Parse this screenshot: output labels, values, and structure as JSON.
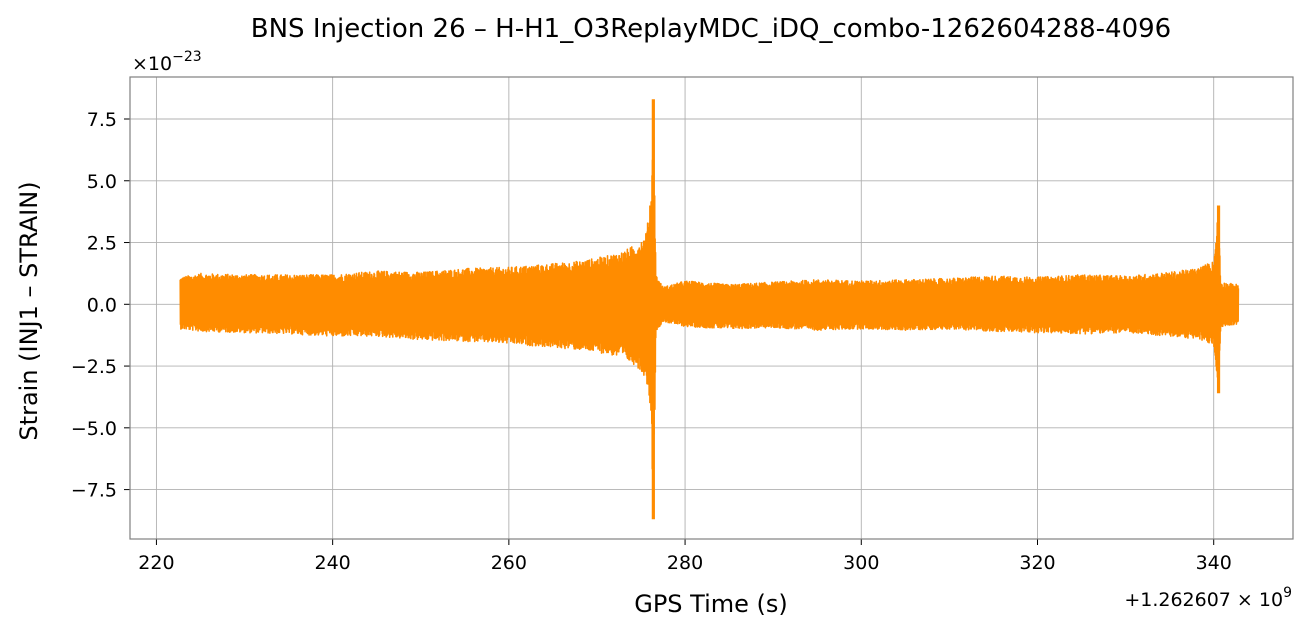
{
  "chart_data": {
    "type": "line",
    "title": "BNS Injection 26 – H-H1_O3ReplayMDC_iDQ_combo-1262604288-4096",
    "xlabel": "GPS Time (s)",
    "ylabel": "Strain (INJ1 – STRAIN)",
    "x_offset_label": "+1.262607 × 10^9",
    "y_multiplier_label": "×10^−23",
    "xlim": [
      217,
      349
    ],
    "ylim": [
      -9.5,
      9.2
    ],
    "xticks": [
      220,
      240,
      260,
      280,
      300,
      320,
      340
    ],
    "xtick_labels": [
      "220",
      "240",
      "260",
      "280",
      "300",
      "320",
      "340"
    ],
    "yticks": [
      -7.5,
      -5.0,
      -2.5,
      0.0,
      2.5,
      5.0,
      7.5
    ],
    "ytick_labels": [
      "−7.5",
      "−5.0",
      "−2.5",
      "0.0",
      "2.5",
      "5.0",
      "7.5"
    ],
    "grid": true,
    "legend": null,
    "series": [
      {
        "name": "",
        "color": "#ff8c00",
        "x_range": [
          222.7,
          342.8
        ],
        "envelope_upper": [
          [
            222.7,
            1.1
          ],
          [
            225,
            1.25
          ],
          [
            230,
            1.2
          ],
          [
            235,
            1.2
          ],
          [
            240,
            1.2
          ],
          [
            245,
            1.35
          ],
          [
            250,
            1.3
          ],
          [
            255,
            1.45
          ],
          [
            260,
            1.5
          ],
          [
            265,
            1.65
          ],
          [
            268,
            1.75
          ],
          [
            271,
            1.95
          ],
          [
            273,
            2.15
          ],
          [
            274.5,
            2.45
          ],
          [
            275.5,
            2.8
          ],
          [
            276.1,
            4.0
          ],
          [
            276.4,
            8.3
          ],
          [
            276.7,
            1.2
          ],
          [
            277.5,
            0.7
          ],
          [
            280,
            0.95
          ],
          [
            285,
            0.8
          ],
          [
            290,
            0.9
          ],
          [
            295,
            1.0
          ],
          [
            300,
            0.95
          ],
          [
            305,
            1.0
          ],
          [
            310,
            1.05
          ],
          [
            315,
            1.15
          ],
          [
            320,
            1.1
          ],
          [
            325,
            1.2
          ],
          [
            330,
            1.15
          ],
          [
            335,
            1.3
          ],
          [
            338,
            1.45
          ],
          [
            340,
            1.75
          ],
          [
            340.55,
            4.0
          ],
          [
            340.8,
            0.9
          ],
          [
            342.8,
            0.8
          ]
        ],
        "envelope_lower": [
          [
            222.7,
            -1.0
          ],
          [
            225,
            -1.1
          ],
          [
            230,
            -1.15
          ],
          [
            235,
            -1.2
          ],
          [
            240,
            -1.3
          ],
          [
            245,
            -1.3
          ],
          [
            250,
            -1.45
          ],
          [
            255,
            -1.5
          ],
          [
            260,
            -1.6
          ],
          [
            265,
            -1.75
          ],
          [
            268,
            -1.85
          ],
          [
            271,
            -2.0
          ],
          [
            273,
            -2.2
          ],
          [
            274.5,
            -2.5
          ],
          [
            275.5,
            -2.95
          ],
          [
            276.1,
            -4.0
          ],
          [
            276.4,
            -8.7
          ],
          [
            276.7,
            -1.1
          ],
          [
            277.5,
            -0.7
          ],
          [
            280,
            -0.9
          ],
          [
            285,
            -1.0
          ],
          [
            290,
            -0.95
          ],
          [
            295,
            -1.05
          ],
          [
            300,
            -1.0
          ],
          [
            305,
            -1.05
          ],
          [
            310,
            -1.0
          ],
          [
            315,
            -1.1
          ],
          [
            320,
            -1.15
          ],
          [
            325,
            -1.2
          ],
          [
            330,
            -1.15
          ],
          [
            335,
            -1.3
          ],
          [
            338,
            -1.4
          ],
          [
            340,
            -1.65
          ],
          [
            340.55,
            -3.6
          ],
          [
            340.8,
            -0.9
          ],
          [
            342.8,
            -0.8
          ]
        ]
      }
    ]
  },
  "colors": {
    "line": "#ff8c00",
    "grid": "#b0b0b0",
    "axes": "#808080",
    "background": "#ffffff"
  }
}
